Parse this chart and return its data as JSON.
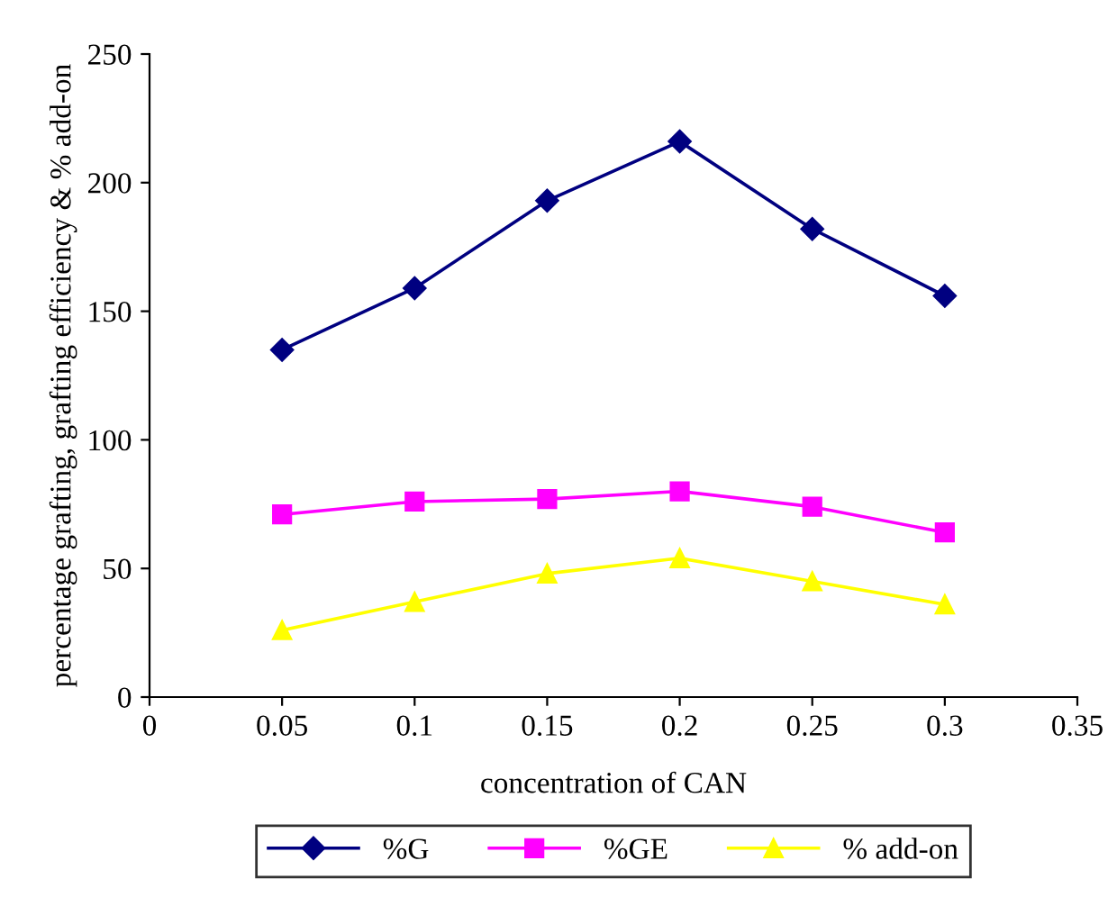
{
  "chart_data": {
    "type": "line",
    "xlabel": "concentration of CAN",
    "ylabel": "percentage grafting, grafting efficiency & % add-on",
    "x": [
      0.05,
      0.1,
      0.15,
      0.2,
      0.25,
      0.3
    ],
    "series": [
      {
        "name": "%G",
        "color": "#000080",
        "marker": "diamond",
        "values": [
          135,
          159,
          193,
          216,
          182,
          156
        ]
      },
      {
        "name": "%GE",
        "color": "#ff00ff",
        "marker": "square",
        "values": [
          71,
          76,
          77,
          80,
          74,
          64
        ]
      },
      {
        "name": "% add-on",
        "color": "#ffff00",
        "marker": "triangle",
        "values": [
          26,
          37,
          48,
          54,
          45,
          36
        ]
      }
    ],
    "xlim": [
      0,
      0.35
    ],
    "xticks": [
      0,
      0.05,
      0.1,
      0.15,
      0.2,
      0.25,
      0.3,
      0.35
    ],
    "ylim": [
      0,
      250
    ],
    "yticks": [
      0,
      50,
      100,
      150,
      200,
      250
    ],
    "grid": false,
    "legend": "bottom",
    "line_style": "solid"
  }
}
